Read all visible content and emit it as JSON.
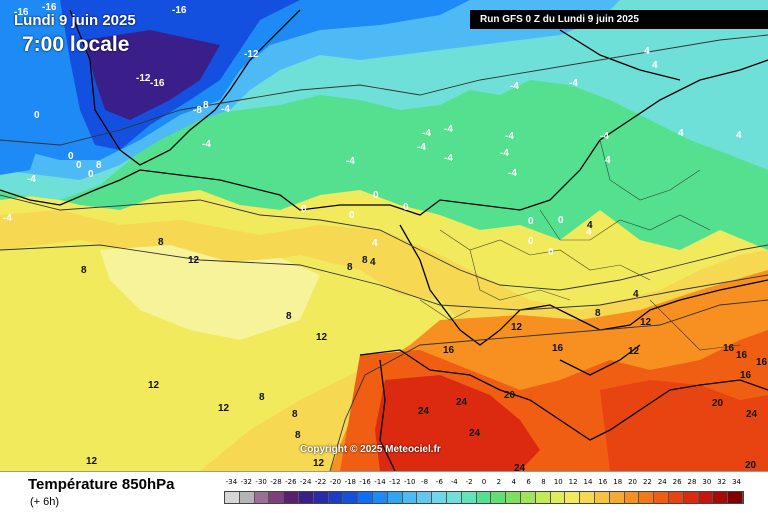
{
  "header": {
    "date": "Lundi 9 juin 2025",
    "local_time": "7:00 locale",
    "run": "Run GFS 0 Z du Lundi 9 juin 2025"
  },
  "footer": {
    "parameter": "Température 850hPa",
    "step": "(+ 6h)",
    "copyright": "Copyright © 2025 Meteociel.fr"
  },
  "legend": {
    "ticks": [
      "-34",
      "-32",
      "-30",
      "-28",
      "-26",
      "-24",
      "-22",
      "-20",
      "-18",
      "-16",
      "-14",
      "-12",
      "-10",
      "-8",
      "-6",
      "-4",
      "-2",
      "0",
      "2",
      "4",
      "6",
      "8",
      "10",
      "12",
      "14",
      "16",
      "18",
      "20",
      "22",
      "24",
      "26",
      "28",
      "30",
      "32",
      "34"
    ],
    "colors": [
      "#d6d6d6",
      "#b5b5b5",
      "#9a6f9a",
      "#7d3f7d",
      "#5a1f6e",
      "#3a1f8a",
      "#2a2aa8",
      "#1c3cc8",
      "#1450e0",
      "#0f6ef5",
      "#1d8af5",
      "#30a4f5",
      "#4dbaf5",
      "#62c8f0",
      "#6fd6e8",
      "#6fe0d8",
      "#63e3b6",
      "#55e090",
      "#60e070",
      "#7ee060",
      "#9fe45a",
      "#c2ea55",
      "#dded5a",
      "#f0ea5c",
      "#f6d852",
      "#f7c240",
      "#f7aa30",
      "#f79020",
      "#f57818",
      "#f05e14",
      "#e84412",
      "#dc2a10",
      "#c8140e",
      "#a80a0a",
      "#800000"
    ]
  },
  "map": {
    "contour_labels": [
      {
        "t": "-16",
        "w": true
      },
      {
        "t": "-16",
        "w": true
      },
      {
        "t": "-16",
        "w": true
      },
      {
        "t": "-12",
        "w": true
      },
      {
        "t": "-12",
        "w": true
      },
      {
        "t": "-16",
        "w": true
      },
      {
        "t": "-8",
        "w": true
      },
      {
        "t": "8",
        "w": true
      },
      {
        "t": "-4",
        "w": true
      },
      {
        "t": "-4",
        "w": true
      },
      {
        "t": "0",
        "w": true
      },
      {
        "t": "0",
        "w": true
      },
      {
        "t": "0",
        "w": true
      },
      {
        "t": "0",
        "w": true
      },
      {
        "t": "8",
        "w": true
      },
      {
        "t": "0",
        "w": true
      },
      {
        "t": "-4",
        "w": true
      },
      {
        "t": "-4",
        "w": true
      },
      {
        "t": "-4",
        "w": true
      },
      {
        "t": "-4",
        "w": true
      },
      {
        "t": "-4",
        "w": true
      },
      {
        "t": "-4",
        "w": true
      },
      {
        "t": "-4",
        "w": true
      },
      {
        "t": "-4",
        "w": true
      },
      {
        "t": "-4",
        "w": true
      },
      {
        "t": "-4",
        "w": true
      },
      {
        "t": "-4",
        "w": true
      },
      {
        "t": "-4",
        "w": true
      },
      {
        "t": "4",
        "w": true
      },
      {
        "t": "4",
        "w": true
      },
      {
        "t": "-4",
        "w": true
      },
      {
        "t": "4",
        "w": true
      },
      {
        "t": "4",
        "w": true
      },
      {
        "t": "4",
        "w": true
      },
      {
        "t": "4",
        "w": true
      },
      {
        "t": "0",
        "w": true
      },
      {
        "t": "0",
        "w": true
      },
      {
        "t": "0",
        "w": true
      },
      {
        "t": "0",
        "w": true
      },
      {
        "t": "0",
        "w": true
      },
      {
        "t": "0",
        "w": true
      },
      {
        "t": "0",
        "w": true
      },
      {
        "t": "4",
        "w": true
      },
      {
        "t": "4",
        "w": true
      },
      {
        "t": "8",
        "w": true
      },
      {
        "t": "8",
        "w": true
      },
      {
        "t": "8",
        "w": true
      },
      {
        "t": "4",
        "w": true
      },
      {
        "t": "8",
        "w": true
      },
      {
        "t": "12",
        "w": true
      },
      {
        "t": "8",
        "w": true
      },
      {
        "t": "8",
        "w": true
      },
      {
        "t": "12",
        "w": true
      },
      {
        "t": "12",
        "w": true
      },
      {
        "t": "12",
        "w": true
      },
      {
        "t": "16",
        "w": true
      },
      {
        "t": "16",
        "w": true
      },
      {
        "t": "12",
        "w": true
      },
      {
        "t": "16",
        "w": true
      },
      {
        "t": "16",
        "w": true
      },
      {
        "t": "16",
        "w": true
      },
      {
        "t": "16",
        "w": true
      },
      {
        "t": "20",
        "w": true
      },
      {
        "t": "20",
        "w": true
      },
      {
        "t": "20",
        "w": true
      },
      {
        "t": "24",
        "w": true
      },
      {
        "t": "24",
        "w": true
      },
      {
        "t": "24",
        "w": true
      },
      {
        "t": "24",
        "w": true
      },
      {
        "t": "24",
        "w": true
      },
      {
        "t": "12",
        "w": true
      },
      {
        "t": "12",
        "w": true
      },
      {
        "t": "8",
        "w": true
      },
      {
        "t": "8",
        "w": true
      },
      {
        "t": "12",
        "w": true
      },
      {
        "t": "12",
        "w": true
      },
      {
        "t": "8",
        "w": true
      },
      {
        "t": "4",
        "w": true
      }
    ]
  }
}
